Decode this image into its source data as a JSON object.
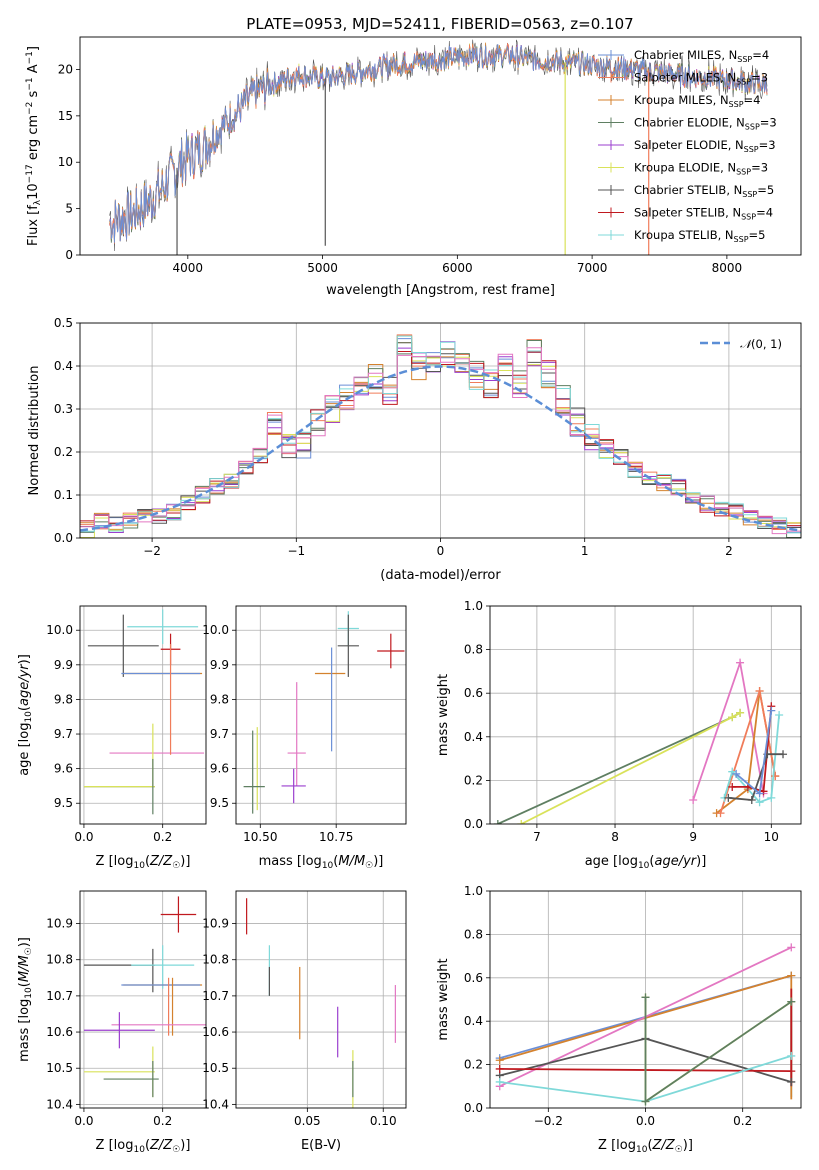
{
  "figure": {
    "title": "PLATE=0953, MJD=52411, FIBERID=0563, z=0.107"
  },
  "colors": {
    "Chabrier MILES": "#6b8fd6",
    "Salpeter MILES": "#f07c5a",
    "Kroupa MILES": "#d4822e",
    "Chabrier ELODIE": "#5f7f62",
    "Salpeter ELODIE": "#9b3fcf",
    "Kroupa ELODIE": "#d9e25a",
    "Chabrier STELIB": "#555555",
    "Salpeter STELIB": "#c0191f",
    "Kroupa STELIB": "#7fd9d9",
    "pink": "#e377c2",
    "normal": "#5b8ed6"
  },
  "chart_data": [
    {
      "id": "spectrum",
      "type": "line",
      "title": "PLATE=0953, MJD=52411, FIBERID=0563, z=0.107",
      "xlabel": "wavelength [Angstrom, rest frame]",
      "ylabel": "Flux [f_λ10^-17 erg cm^-2 s^-1 A^-1]",
      "xlim": [
        3200,
        8550
      ],
      "ylim": [
        0,
        23.5
      ],
      "xticks": [
        4000,
        5000,
        6000,
        7000,
        8000
      ],
      "yticks": [
        0,
        5,
        10,
        15,
        20
      ],
      "grid": false,
      "legend_position": "right",
      "continuum_knots": {
        "x": [
          3420,
          3600,
          3800,
          3950,
          4100,
          4300,
          4500,
          4800,
          5000,
          5200,
          5500,
          5800,
          6100,
          6400,
          6600,
          6800,
          7000,
          7300,
          7600,
          7900,
          8200,
          8300
        ],
        "y": [
          3.5,
          4.5,
          7.0,
          10.0,
          11.5,
          14.5,
          17.5,
          19.5,
          19.0,
          19.5,
          20.5,
          21.0,
          21.5,
          21.5,
          21.0,
          20.8,
          20.5,
          20.0,
          19.5,
          19.0,
          18.5,
          18.5
        ]
      },
      "spikes": [
        {
          "x": 5020,
          "bottom": 1.0
        },
        {
          "x": 6800,
          "bottom": 0
        },
        {
          "x": 7420,
          "bottom": 0
        },
        {
          "x": 3920,
          "bottom": 0
        }
      ],
      "series": [
        {
          "name": "Chabrier MILES, N_SSP=4",
          "color_key": "Chabrier MILES"
        },
        {
          "name": "Salpeter MILES, N_SSP=3",
          "color_key": "Salpeter MILES"
        },
        {
          "name": "Kroupa MILES, N_SSP=4",
          "color_key": "Kroupa MILES"
        },
        {
          "name": "Chabrier ELODIE, N_SSP=3",
          "color_key": "Chabrier ELODIE"
        },
        {
          "name": "Salpeter ELODIE, N_SSP=3",
          "color_key": "Salpeter ELODIE"
        },
        {
          "name": "Kroupa ELODIE, N_SSP=3",
          "color_key": "Kroupa ELODIE"
        },
        {
          "name": "Chabrier STELIB, N_SSP=5",
          "color_key": "Chabrier STELIB"
        },
        {
          "name": "Salpeter STELIB, N_SSP=4",
          "color_key": "Salpeter STELIB"
        },
        {
          "name": "Kroupa STELIB, N_SSP=5",
          "color_key": "Kroupa STELIB"
        }
      ]
    },
    {
      "id": "residuals",
      "type": "line",
      "xlabel": "(data-model)/error",
      "ylabel": "Normed distribution",
      "xlim": [
        -2.5,
        2.5
      ],
      "ylim": [
        0,
        0.5
      ],
      "xticks": [
        -2,
        -1,
        0,
        1,
        2
      ],
      "yticks": [
        0.0,
        0.1,
        0.2,
        0.3,
        0.4,
        0.5
      ],
      "grid": true,
      "legend_position": "top-right",
      "legend": "N(0,1)",
      "bin_width": 0.1,
      "base_histogram": {
        "x": [
          -2.5,
          -2.4,
          -2.3,
          -2.2,
          -2.1,
          -2.0,
          -1.9,
          -1.8,
          -1.7,
          -1.6,
          -1.5,
          -1.4,
          -1.3,
          -1.2,
          -1.1,
          -1.0,
          -0.9,
          -0.8,
          -0.7,
          -0.6,
          -0.5,
          -0.4,
          -0.3,
          -0.2,
          -0.1,
          0.0,
          0.1,
          0.2,
          0.3,
          0.4,
          0.5,
          0.6,
          0.7,
          0.8,
          0.9,
          1.0,
          1.1,
          1.2,
          1.3,
          1.4,
          1.5,
          1.6,
          1.7,
          1.8,
          1.9,
          2.0,
          2.1,
          2.2,
          2.3,
          2.4
        ],
        "y": [
          0.02,
          0.04,
          0.03,
          0.04,
          0.05,
          0.05,
          0.06,
          0.08,
          0.1,
          0.12,
          0.13,
          0.16,
          0.19,
          0.26,
          0.22,
          0.22,
          0.27,
          0.3,
          0.33,
          0.36,
          0.37,
          0.34,
          0.44,
          0.4,
          0.41,
          0.43,
          0.4,
          0.38,
          0.36,
          0.4,
          0.36,
          0.43,
          0.38,
          0.32,
          0.27,
          0.24,
          0.22,
          0.19,
          0.16,
          0.14,
          0.13,
          0.12,
          0.1,
          0.08,
          0.07,
          0.06,
          0.05,
          0.04,
          0.03,
          0.02
        ]
      },
      "normal": {
        "mean": 0,
        "sigma": 1
      }
    },
    {
      "id": "age-vs-Z",
      "type": "scatter",
      "xlabel": "Z [log10(Z/Z☉)]",
      "ylabel": "age [log10(age/yr)]",
      "xlim": [
        -0.01,
        0.31
      ],
      "ylim": [
        9.44,
        10.07
      ],
      "xticks": [
        0.0,
        0.2
      ],
      "yticks": [
        9.5,
        9.6,
        9.7,
        9.8,
        9.9,
        10.0
      ],
      "grid": true,
      "points": [
        {
          "series": "Kroupa STELIB",
          "x": 0.2,
          "xerr": 0.09,
          "y": 10.01,
          "yerr": 0.05
        },
        {
          "series": "Chabrier STELIB",
          "x": 0.1,
          "xerr": 0.09,
          "y": 9.955,
          "yerr": 0.09
        },
        {
          "series": "Salpeter STELIB",
          "x": 0.22,
          "xerr": 0.025,
          "y": 9.945,
          "yerr": 0.045
        },
        {
          "series": "Kroupa MILES",
          "x": 0.2,
          "xerr": 0.1,
          "y": 9.875,
          "yerr": 0.0
        },
        {
          "series": "Chabrier MILES",
          "x": 0.195,
          "xerr": 0.1,
          "y": 9.875,
          "yerr": 0.0
        },
        {
          "series": "pink",
          "x": 0.185,
          "xerr": 0.12,
          "y": 9.645,
          "yerr": 0.0
        },
        {
          "series": "Salpeter MILES",
          "x": 0.22,
          "xerr": 0.0,
          "y": 9.8,
          "yerr": 0.16
        },
        {
          "series": "Kroupa ELODIE",
          "x": 0.175,
          "xerr": 0.0,
          "y": 9.64,
          "yerr": 0.09
        },
        {
          "series": "Chabrier ELODIE",
          "x": 0.09,
          "xerr": 0.09,
          "y": 9.548,
          "yerr": 0.0
        },
        {
          "series": "Kroupa ELODIE",
          "x": 0.09,
          "xerr": 0.09,
          "y": 9.548,
          "yerr": 0.0
        },
        {
          "series": "Chabrier ELODIE",
          "x": 0.175,
          "xerr": 0.0,
          "y": 9.548,
          "yerr": 0.08
        }
      ]
    },
    {
      "id": "age-vs-mass",
      "type": "scatter",
      "xlabel": "mass [log10(M/M☉)]",
      "ylabel": "",
      "xlim": [
        10.42,
        10.98
      ],
      "ylim": [
        9.44,
        10.07
      ],
      "xticks": [
        10.5,
        10.75
      ],
      "yticks": [
        9.5,
        9.6,
        9.7,
        9.8,
        9.9,
        10.0
      ],
      "grid": true,
      "points": [
        {
          "series": "Salpeter STELIB",
          "x": 10.93,
          "xerr": 0.045,
          "y": 9.94,
          "yerr": 0.05
        },
        {
          "series": "Kroupa STELIB",
          "x": 10.79,
          "xerr": 0.035,
          "y": 10.005,
          "yerr": 0.05
        },
        {
          "series": "Chabrier STELIB",
          "x": 10.79,
          "xerr": 0.035,
          "y": 9.955,
          "yerr": 0.09
        },
        {
          "series": "Kroupa MILES",
          "x": 10.73,
          "xerr": 0.05,
          "y": 9.875,
          "yerr": 0.0
        },
        {
          "series": "Chabrier MILES",
          "x": 10.735,
          "xerr": 0.0,
          "y": 9.8,
          "yerr": 0.15
        },
        {
          "series": "pink",
          "x": 10.62,
          "xerr": 0.0,
          "y": 9.7,
          "yerr": 0.15
        },
        {
          "series": "pink",
          "x": 10.62,
          "xerr": 0.03,
          "y": 9.645,
          "yerr": 0.0
        },
        {
          "series": "Salpeter ELODIE",
          "x": 10.61,
          "xerr": 0.04,
          "y": 9.55,
          "yerr": 0.05
        },
        {
          "series": "Kroupa ELODIE",
          "x": 10.49,
          "xerr": 0.0,
          "y": 9.6,
          "yerr": 0.12
        },
        {
          "series": "Chabrier ELODIE",
          "x": 10.475,
          "xerr": 0.0,
          "y": 9.59,
          "yerr": 0.12
        },
        {
          "series": "Chabrier ELODIE",
          "x": 10.48,
          "xerr": 0.035,
          "y": 9.548,
          "yerr": 0.0
        }
      ]
    },
    {
      "id": "weight-vs-age",
      "type": "line",
      "xlabel": "age [log10(age/yr)]",
      "ylabel": "mass weight",
      "xlim": [
        6.4,
        10.38
      ],
      "ylim": [
        0,
        1.0
      ],
      "xticks": [
        7,
        8,
        9,
        10
      ],
      "yticks": [
        0.0,
        0.2,
        0.4,
        0.6,
        0.8,
        1.0
      ],
      "grid": true,
      "series": [
        {
          "name": "Chabrier ELODIE",
          "x": [
            6.5,
            9.5,
            9.6
          ],
          "y": [
            0.0,
            0.49,
            0.51
          ]
        },
        {
          "name": "Kroupa ELODIE",
          "x": [
            6.8,
            9.5,
            9.6
          ],
          "y": [
            0.0,
            0.49,
            0.51
          ]
        },
        {
          "name": "pink",
          "x": [
            9.0,
            9.6,
            9.9
          ],
          "y": [
            0.11,
            0.74,
            0.14
          ]
        },
        {
          "name": "Kroupa MILES",
          "x": [
            9.3,
            9.7,
            9.85,
            10.05
          ],
          "y": [
            0.05,
            0.16,
            0.61,
            0.22
          ]
        },
        {
          "name": "Salpeter MILES",
          "x": [
            9.35,
            9.85,
            10.05
          ],
          "y": [
            0.05,
            0.61,
            0.22
          ]
        },
        {
          "name": "Kroupa STELIB",
          "x": [
            9.4,
            9.5,
            9.85,
            10.0,
            10.1
          ],
          "y": [
            0.12,
            0.24,
            0.1,
            0.12,
            0.5
          ]
        },
        {
          "name": "Salpeter STELIB",
          "x": [
            9.5,
            9.7,
            9.9,
            10.0
          ],
          "y": [
            0.17,
            0.17,
            0.15,
            0.54
          ]
        },
        {
          "name": "Chabrier STELIB",
          "x": [
            9.45,
            9.75,
            9.95,
            10.15
          ],
          "y": [
            0.12,
            0.11,
            0.32,
            0.32
          ]
        },
        {
          "name": "Chabrier MILES",
          "x": [
            9.55,
            9.85,
            10.0
          ],
          "y": [
            0.23,
            0.14,
            0.52
          ]
        }
      ]
    },
    {
      "id": "mass-vs-Z",
      "type": "scatter",
      "xlabel": "Z [log10(Z/Z☉)]",
      "ylabel": "mass [log10(M/M☉)]",
      "xlim": [
        -0.01,
        0.31
      ],
      "ylim": [
        10.39,
        10.99
      ],
      "xticks": [
        0.0,
        0.2
      ],
      "yticks": [
        10.4,
        10.5,
        10.6,
        10.7,
        10.8,
        10.9
      ],
      "grid": true,
      "points": [
        {
          "series": "Salpeter STELIB",
          "x": 0.24,
          "xerr": 0.045,
          "y": 10.925,
          "yerr": 0.05
        },
        {
          "series": "Chabrier STELIB",
          "x": 0.09,
          "xerr": 0.09,
          "y": 10.785,
          "yerr": 0.0
        },
        {
          "series": "Chabrier STELIB",
          "x": 0.175,
          "xerr": 0.0,
          "y": 10.77,
          "yerr": 0.06
        },
        {
          "series": "Kroupa STELIB",
          "x": 0.2,
          "xerr": 0.0,
          "y": 10.78,
          "yerr": 0.06
        },
        {
          "series": "Kroupa STELIB",
          "x": 0.2,
          "xerr": 0.08,
          "y": 10.785,
          "yerr": 0.0
        },
        {
          "series": "Kroupa MILES",
          "x": 0.2,
          "xerr": 0.1,
          "y": 10.73,
          "yerr": 0.0
        },
        {
          "series": "Chabrier MILES",
          "x": 0.195,
          "xerr": 0.1,
          "y": 10.73,
          "yerr": 0.0
        },
        {
          "series": "Salpeter MILES",
          "x": 0.215,
          "xerr": 0.0,
          "y": 10.67,
          "yerr": 0.08
        },
        {
          "series": "Kroupa MILES",
          "x": 0.225,
          "xerr": 0.0,
          "y": 10.67,
          "yerr": 0.08
        },
        {
          "series": "pink",
          "x": 0.19,
          "xerr": 0.12,
          "y": 10.62,
          "yerr": 0.0
        },
        {
          "series": "Salpeter ELODIE",
          "x": 0.09,
          "xerr": 0.09,
          "y": 10.605,
          "yerr": 0.05
        },
        {
          "series": "Kroupa ELODIE",
          "x": 0.09,
          "xerr": 0.09,
          "y": 10.49,
          "yerr": 0.0
        },
        {
          "series": "Kroupa ELODIE",
          "x": 0.175,
          "xerr": 0.0,
          "y": 10.49,
          "yerr": 0.07
        },
        {
          "series": "Chabrier ELODIE",
          "x": 0.12,
          "xerr": 0.07,
          "y": 10.47,
          "yerr": 0.0
        },
        {
          "series": "Chabrier ELODIE",
          "x": 0.175,
          "xerr": 0.0,
          "y": 10.47,
          "yerr": 0.05
        }
      ]
    },
    {
      "id": "mass-vs-EBV",
      "type": "scatter",
      "xlabel": "E(B-V)",
      "ylabel": "",
      "xlim": [
        0.003,
        0.115
      ],
      "ylim": [
        10.39,
        10.99
      ],
      "xticks": [
        0.05,
        0.1
      ],
      "yticks": [
        10.4,
        10.5,
        10.6,
        10.7,
        10.8,
        10.9
      ],
      "grid": true,
      "points": [
        {
          "series": "Salpeter STELIB",
          "x": 0.01,
          "xerr": 0.0,
          "y": 10.92,
          "yerr": 0.05
        },
        {
          "series": "Kroupa STELIB",
          "x": 0.025,
          "xerr": 0.0,
          "y": 10.77,
          "yerr": 0.07
        },
        {
          "series": "Chabrier STELIB",
          "x": 0.025,
          "xerr": 0.0,
          "y": 10.74,
          "yerr": 0.04
        },
        {
          "series": "Kroupa MILES",
          "x": 0.045,
          "xerr": 0.0,
          "y": 10.68,
          "yerr": 0.1
        },
        {
          "series": "Salpeter ELODIE",
          "x": 0.07,
          "xerr": 0.0,
          "y": 10.6,
          "yerr": 0.07
        },
        {
          "series": "Kroupa ELODIE",
          "x": 0.08,
          "xerr": 0.0,
          "y": 10.47,
          "yerr": 0.08
        },
        {
          "series": "Chabrier ELODIE",
          "x": 0.08,
          "xerr": 0.0,
          "y": 10.47,
          "yerr": 0.05
        },
        {
          "series": "pink",
          "x": 0.108,
          "xerr": 0.0,
          "y": 10.65,
          "yerr": 0.08
        }
      ]
    },
    {
      "id": "weight-vs-Z",
      "type": "line",
      "xlabel": "Z [log10(Z/Z☉)]",
      "ylabel": "mass weight",
      "xlim": [
        -0.32,
        0.32
      ],
      "ylim": [
        0,
        1.0
      ],
      "xticks": [
        -0.2,
        0.0,
        0.2
      ],
      "yticks": [
        0.0,
        0.2,
        0.4,
        0.6,
        0.8,
        1.0
      ],
      "grid": true,
      "series": [
        {
          "name": "Chabrier MILES",
          "x": [
            -0.3,
            0.3
          ],
          "y": [
            0.23,
            0.61
          ]
        },
        {
          "name": "Kroupa MILES",
          "x": [
            -0.3,
            0.3
          ],
          "y": [
            0.22,
            0.61
          ]
        },
        {
          "name": "pink",
          "x": [
            -0.3,
            0.3
          ],
          "y": [
            0.1,
            0.74
          ]
        },
        {
          "name": "Chabrier STELIB",
          "x": [
            -0.3,
            0.0,
            0.3
          ],
          "y": [
            0.15,
            0.32,
            0.12
          ]
        },
        {
          "name": "Salpeter STELIB",
          "x": [
            -0.3,
            0.3
          ],
          "y": [
            0.18,
            0.17
          ]
        },
        {
          "name": "Kroupa STELIB",
          "x": [
            -0.3,
            0.0,
            0.3
          ],
          "y": [
            0.12,
            0.03,
            0.24
          ]
        },
        {
          "name": "Kroupa ELODIE",
          "x": [
            0.0,
            0.0,
            0.3
          ],
          "y": [
            0.51,
            0.03,
            0.49
          ]
        },
        {
          "name": "Chabrier ELODIE",
          "x": [
            0.0,
            0.0,
            0.3
          ],
          "y": [
            0.51,
            0.03,
            0.49
          ]
        }
      ],
      "verticals": [
        {
          "name": "Chabrier STELIB",
          "x": 0.3,
          "y": [
            0.1,
            0.5
          ]
        },
        {
          "name": "Kroupa STELIB",
          "x": 0.3,
          "y": [
            0.05,
            0.5
          ]
        },
        {
          "name": "Kroupa MILES",
          "x": 0.3,
          "y": [
            0.04,
            0.61
          ]
        },
        {
          "name": "Salpeter STELIB",
          "x": 0.3,
          "y": [
            0.1,
            0.55
          ]
        }
      ]
    }
  ]
}
